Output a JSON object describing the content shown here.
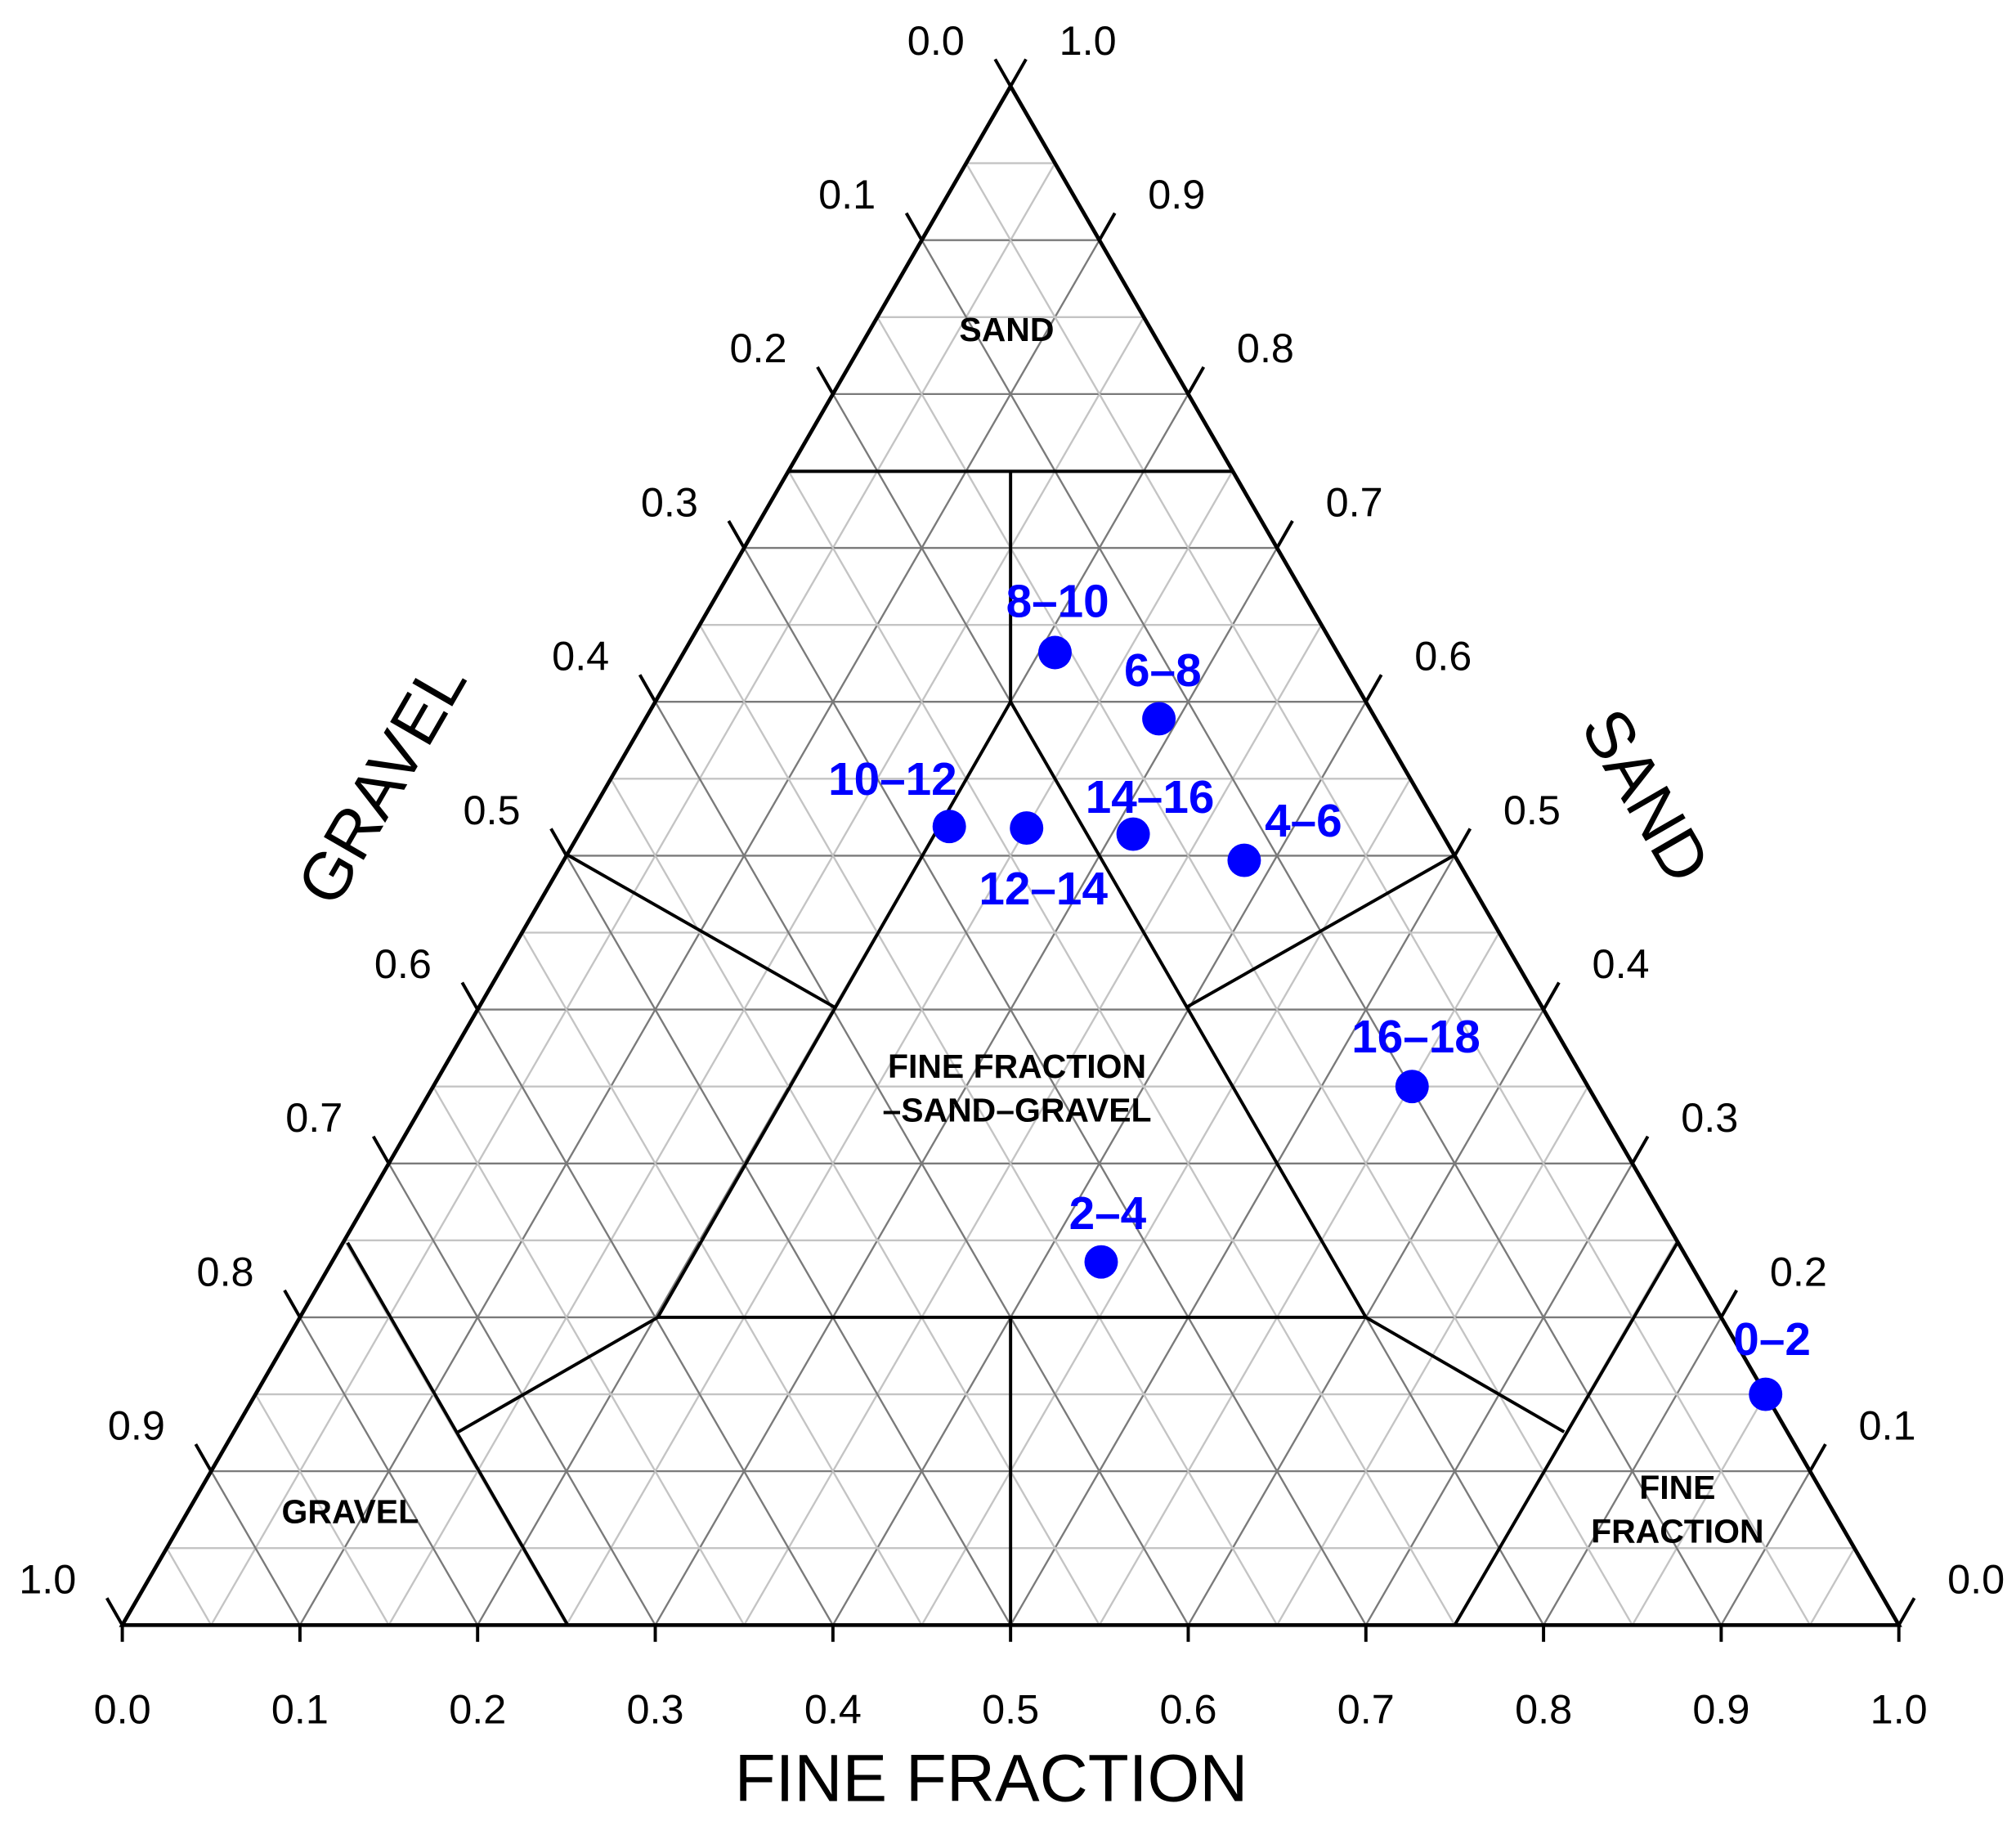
{
  "chart_data": {
    "type": "ternary",
    "color": "#0000ff",
    "axes": {
      "fine": {
        "title": "FINE FRACTION",
        "ticks": [
          {
            "value": 0,
            "label": "0.0"
          },
          0.1,
          0.2,
          0.3,
          0.4,
          0.5,
          0.6,
          0.7,
          0.8,
          0.9,
          {
            "value": 1,
            "label": "1.0"
          }
        ]
      },
      "sand": {
        "title": "SAND",
        "ticks": [
          {
            "value": 0,
            "label": "0.0"
          },
          0.1,
          0.2,
          0.3,
          0.4,
          0.5,
          0.6,
          0.7,
          0.8,
          0.9,
          {
            "value": 1,
            "label": "1.0"
          }
        ]
      },
      "gravel": {
        "title": "GRAVEL",
        "ticks": [
          {
            "value": 0,
            "label": "0.0"
          },
          0.1,
          0.2,
          0.3,
          0.4,
          0.5,
          0.6,
          0.7,
          0.8,
          0.9,
          {
            "value": 1,
            "label": "1.0"
          }
        ]
      }
    },
    "regions": [
      {
        "lines": [
          "SAND"
        ]
      },
      {
        "lines": [
          "FINE FRACTION",
          "–SAND–GRAVEL"
        ]
      },
      {
        "lines": [
          "GRAVEL"
        ]
      },
      {
        "lines": [
          "FINE",
          "FRACTION"
        ]
      }
    ],
    "points": [
      {
        "name": "0–2",
        "fine": 0.85,
        "sand": 0.15,
        "gravel": 0.0
      },
      {
        "name": "2–4",
        "fine": 0.433,
        "sand": 0.236,
        "gravel": 0.331
      },
      {
        "name": "4–6",
        "fine": 0.383,
        "sand": 0.497,
        "gravel": 0.12
      },
      {
        "name": "6–8",
        "fine": 0.289,
        "sand": 0.589,
        "gravel": 0.122
      },
      {
        "name": "8–10",
        "fine": 0.209,
        "sand": 0.632,
        "gravel": 0.159
      },
      {
        "name": "10–12",
        "fine": 0.206,
        "sand": 0.519,
        "gravel": 0.275
      },
      {
        "name": "12–14",
        "fine": 0.25,
        "sand": 0.518,
        "gravel": 0.232
      },
      {
        "name": "14–16",
        "fine": 0.312,
        "sand": 0.514,
        "gravel": 0.174
      },
      {
        "name": "16–18",
        "fine": 0.551,
        "sand": 0.35,
        "gravel": 0.099
      }
    ]
  }
}
